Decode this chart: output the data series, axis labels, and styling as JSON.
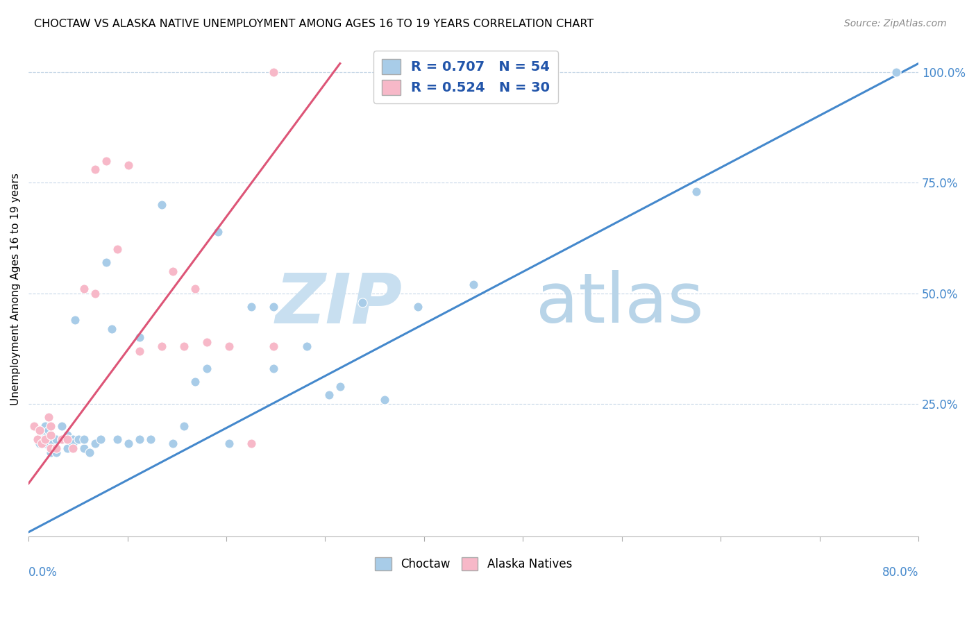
{
  "title": "CHOCTAW VS ALASKA NATIVE UNEMPLOYMENT AMONG AGES 16 TO 19 YEARS CORRELATION CHART",
  "source": "Source: ZipAtlas.com",
  "ylabel": "Unemployment Among Ages 16 to 19 years",
  "xmin": 0.0,
  "xmax": 0.8,
  "ymin": -0.05,
  "ymax": 1.07,
  "legend_label1": "Choctaw",
  "legend_label2": "Alaska Natives",
  "r1": 0.707,
  "n1": 54,
  "r2": 0.524,
  "n2": 30,
  "color_blue": "#a8cce8",
  "color_pink": "#f7b8c8",
  "line_blue": "#4488cc",
  "line_pink": "#dd5577",
  "watermark_zip": "ZIP",
  "watermark_atlas": "atlas",
  "watermark_color": "#ddeeff",
  "blue_x": [
    0.005,
    0.008,
    0.01,
    0.01,
    0.012,
    0.013,
    0.015,
    0.015,
    0.018,
    0.02,
    0.02,
    0.02,
    0.022,
    0.025,
    0.025,
    0.03,
    0.03,
    0.035,
    0.035,
    0.04,
    0.04,
    0.042,
    0.045,
    0.05,
    0.05,
    0.055,
    0.06,
    0.065,
    0.07,
    0.075,
    0.08,
    0.09,
    0.1,
    0.1,
    0.11,
    0.12,
    0.13,
    0.14,
    0.15,
    0.16,
    0.17,
    0.18,
    0.2,
    0.22,
    0.22,
    0.25,
    0.27,
    0.28,
    0.3,
    0.32,
    0.35,
    0.4,
    0.6,
    0.78
  ],
  "blue_y": [
    0.2,
    0.17,
    0.19,
    0.16,
    0.18,
    0.17,
    0.2,
    0.16,
    0.19,
    0.14,
    0.17,
    0.18,
    0.16,
    0.17,
    0.14,
    0.2,
    0.17,
    0.18,
    0.15,
    0.17,
    0.16,
    0.44,
    0.17,
    0.15,
    0.17,
    0.14,
    0.16,
    0.17,
    0.57,
    0.42,
    0.17,
    0.16,
    0.4,
    0.17,
    0.17,
    0.7,
    0.16,
    0.2,
    0.3,
    0.33,
    0.64,
    0.16,
    0.47,
    0.47,
    0.33,
    0.38,
    0.27,
    0.29,
    0.48,
    0.26,
    0.47,
    0.52,
    0.73,
    1.0
  ],
  "pink_x": [
    0.005,
    0.008,
    0.01,
    0.012,
    0.015,
    0.018,
    0.02,
    0.02,
    0.02,
    0.025,
    0.03,
    0.035,
    0.04,
    0.05,
    0.06,
    0.06,
    0.07,
    0.08,
    0.09,
    0.1,
    0.12,
    0.13,
    0.14,
    0.15,
    0.16,
    0.18,
    0.2,
    0.22,
    0.22,
    0.22
  ],
  "pink_y": [
    0.2,
    0.17,
    0.19,
    0.16,
    0.17,
    0.22,
    0.15,
    0.18,
    0.2,
    0.15,
    0.17,
    0.17,
    0.15,
    0.51,
    0.5,
    0.78,
    0.8,
    0.6,
    0.79,
    0.37,
    0.38,
    0.55,
    0.38,
    0.51,
    0.39,
    0.38,
    0.16,
    0.38,
    0.38,
    1.0
  ]
}
